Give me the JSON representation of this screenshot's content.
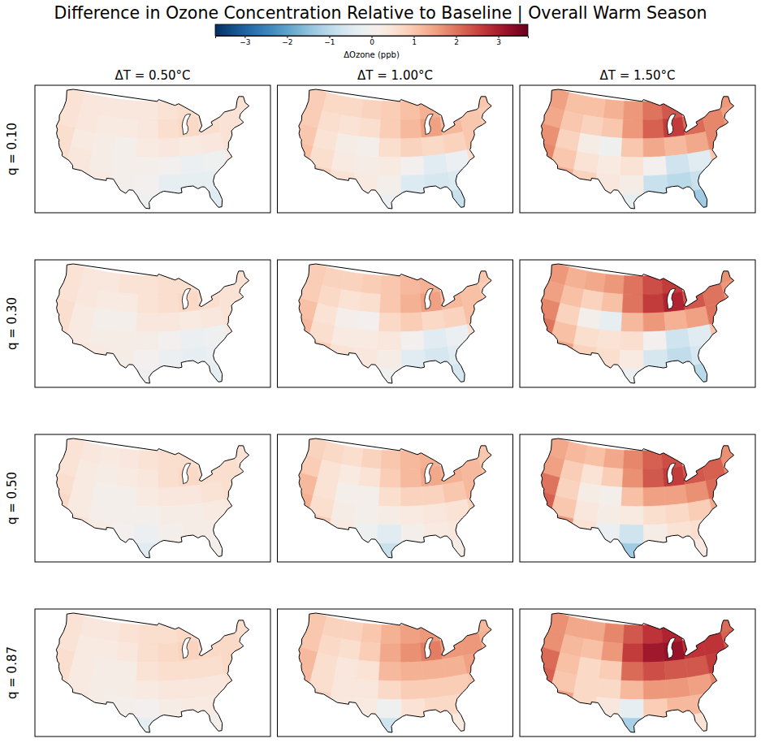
{
  "chart_data": {
    "type": "heatmap",
    "title": "Difference in Ozone Concentration Relative to Baseline | Overall Warm Season",
    "tick_labels": false,
    "colorbar": {
      "label": "ΔOzone (ppb)",
      "range": [
        -3.7,
        3.7
      ],
      "ticks": [
        {
          "value": -3,
          "label": "−3"
        },
        {
          "value": -2,
          "label": "−2"
        },
        {
          "value": -1,
          "label": "−1"
        },
        0,
        1,
        2,
        3
      ]
    },
    "columns": [
      "ΔT = 0.50°C",
      "ΔT = 1.00°C",
      "ΔT = 1.50°C"
    ],
    "rows": [
      "q = 0.10",
      "q = 0.30",
      "q = 0.50",
      "q = 0.87"
    ],
    "lon": [
      -122,
      -116,
      -110,
      -104,
      -98,
      -92,
      -86,
      -80,
      -74,
      -68
    ],
    "lat": [
      47,
      43,
      39,
      35,
      31,
      27
    ],
    "cells": [
      [
        [
          [
            0.5,
            0.4,
            0.4,
            0.4,
            0.4,
            0.5,
            0.6,
            null,
            null,
            0.5
          ],
          [
            0.5,
            0.4,
            0.3,
            0.3,
            0.4,
            0.6,
            0.7,
            0.6,
            0.5,
            0.5
          ],
          [
            0.6,
            0.3,
            0.2,
            0.1,
            0.3,
            0.4,
            0.3,
            0.4,
            0.5,
            null
          ],
          [
            0.6,
            0.4,
            0.2,
            0.1,
            0.1,
            0.0,
            -0.2,
            -0.1,
            0.3,
            null
          ],
          [
            null,
            0.4,
            0.3,
            0.1,
            0.0,
            -0.3,
            -0.3,
            -0.3,
            null,
            null
          ],
          [
            null,
            null,
            null,
            null,
            -0.1,
            null,
            null,
            -0.4,
            null,
            null
          ]
        ],
        [
          [
            0.9,
            0.7,
            0.7,
            0.8,
            0.9,
            1.1,
            1.3,
            null,
            null,
            1.0
          ],
          [
            0.9,
            0.6,
            0.5,
            0.6,
            0.9,
            1.2,
            1.5,
            1.2,
            1.0,
            0.9
          ],
          [
            1.0,
            0.5,
            0.2,
            0.1,
            0.6,
            0.8,
            0.7,
            0.8,
            1.0,
            null
          ],
          [
            1.1,
            0.6,
            0.3,
            0.2,
            0.3,
            0.0,
            -0.4,
            -0.2,
            0.6,
            null
          ],
          [
            null,
            0.8,
            0.5,
            0.3,
            0.1,
            -0.5,
            -0.6,
            -0.5,
            null,
            null
          ],
          [
            null,
            null,
            null,
            null,
            -0.2,
            null,
            null,
            -0.8,
            null,
            null
          ]
        ],
        [
          [
            1.5,
            1.1,
            1.1,
            1.3,
            1.6,
            2.0,
            2.3,
            null,
            null,
            1.6
          ],
          [
            1.4,
            1.0,
            0.8,
            1.0,
            1.6,
            2.2,
            2.6,
            2.1,
            1.8,
            1.5
          ],
          [
            1.7,
            0.8,
            0.2,
            -0.1,
            1.0,
            1.4,
            1.2,
            1.4,
            1.8,
            null
          ],
          [
            1.8,
            1.0,
            0.5,
            0.3,
            0.5,
            0.0,
            -0.7,
            -0.4,
            1.0,
            null
          ],
          [
            null,
            1.3,
            0.8,
            0.4,
            0.2,
            -0.8,
            -1.0,
            -0.8,
            null,
            null
          ],
          [
            null,
            null,
            null,
            null,
            -0.3,
            null,
            null,
            -1.3,
            null,
            null
          ]
        ]
      ],
      [
        [
          [
            0.5,
            0.4,
            0.4,
            0.5,
            0.5,
            0.6,
            0.6,
            null,
            null,
            0.5
          ],
          [
            0.5,
            0.4,
            0.3,
            0.3,
            0.5,
            0.6,
            0.7,
            0.6,
            0.5,
            0.5
          ],
          [
            0.6,
            0.3,
            0.1,
            0.1,
            0.4,
            0.4,
            0.3,
            0.4,
            0.5,
            null
          ],
          [
            0.6,
            0.3,
            0.2,
            0.2,
            0.2,
            0.0,
            -0.2,
            -0.1,
            0.3,
            null
          ],
          [
            null,
            0.4,
            0.3,
            0.2,
            0.0,
            -0.2,
            -0.3,
            -0.2,
            null,
            null
          ],
          [
            null,
            null,
            null,
            null,
            -0.1,
            null,
            null,
            -0.3,
            null,
            null
          ]
        ],
        [
          [
            0.9,
            0.8,
            0.8,
            0.9,
            1.0,
            1.2,
            1.3,
            null,
            null,
            1.0
          ],
          [
            0.9,
            0.7,
            0.5,
            0.6,
            1.0,
            1.3,
            1.5,
            1.2,
            1.1,
            0.9
          ],
          [
            1.1,
            0.5,
            0.1,
            0.0,
            0.7,
            0.9,
            0.7,
            0.8,
            1.1,
            null
          ],
          [
            1.2,
            0.6,
            0.3,
            0.3,
            0.4,
            0.0,
            -0.4,
            -0.2,
            0.6,
            null
          ],
          [
            null,
            0.9,
            0.5,
            0.4,
            0.2,
            -0.4,
            -0.6,
            -0.4,
            null,
            null
          ],
          [
            null,
            null,
            null,
            null,
            -0.1,
            null,
            null,
            -0.6,
            null,
            null
          ]
        ],
        [
          [
            1.6,
            1.3,
            1.4,
            1.6,
            2.0,
            2.4,
            2.6,
            null,
            null,
            1.7
          ],
          [
            1.5,
            1.1,
            0.8,
            1.1,
            2.0,
            2.6,
            2.9,
            2.3,
            2.0,
            1.6
          ],
          [
            1.8,
            0.8,
            0.1,
            -0.3,
            1.2,
            1.6,
            1.3,
            1.5,
            2.0,
            null
          ],
          [
            2.0,
            1.1,
            0.6,
            0.5,
            0.6,
            0.0,
            -0.7,
            -0.4,
            1.1,
            null
          ],
          [
            null,
            1.5,
            0.8,
            0.6,
            0.3,
            -0.6,
            -0.9,
            -0.6,
            null,
            null
          ],
          [
            null,
            null,
            null,
            null,
            -0.2,
            null,
            null,
            -1.0,
            null,
            null
          ]
        ]
      ],
      [
        [
          [
            0.5,
            0.4,
            0.3,
            0.4,
            0.5,
            0.6,
            0.6,
            null,
            null,
            0.5
          ],
          [
            0.5,
            0.3,
            0.2,
            0.3,
            0.4,
            0.6,
            0.7,
            0.6,
            0.6,
            0.5
          ],
          [
            0.6,
            0.3,
            0.1,
            0.1,
            0.3,
            0.4,
            0.4,
            0.5,
            0.6,
            null
          ],
          [
            0.7,
            0.3,
            0.1,
            0.1,
            0.1,
            0.2,
            0.2,
            0.3,
            0.4,
            null
          ],
          [
            null,
            0.5,
            0.2,
            0.0,
            -0.2,
            0.1,
            0.2,
            0.2,
            null,
            null
          ],
          [
            null,
            null,
            null,
            null,
            -0.4,
            null,
            null,
            0.1,
            null,
            null
          ]
        ],
        [
          [
            0.8,
            0.7,
            0.6,
            0.8,
            1.0,
            1.2,
            1.3,
            null,
            null,
            1.0
          ],
          [
            0.9,
            0.5,
            0.3,
            0.5,
            0.9,
            1.2,
            1.4,
            1.3,
            1.2,
            1.0
          ],
          [
            1.2,
            0.5,
            0.1,
            0.1,
            0.6,
            0.8,
            0.8,
            1.0,
            1.2,
            null
          ],
          [
            1.3,
            0.6,
            0.2,
            0.1,
            0.2,
            0.3,
            0.4,
            0.5,
            0.8,
            null
          ],
          [
            null,
            0.9,
            0.3,
            -0.1,
            -0.4,
            0.1,
            0.3,
            0.4,
            null,
            null
          ],
          [
            null,
            null,
            null,
            null,
            -0.8,
            null,
            null,
            0.2,
            null,
            null
          ]
        ],
        [
          [
            1.4,
            1.2,
            1.1,
            1.4,
            1.8,
            2.2,
            2.4,
            null,
            null,
            1.7
          ],
          [
            1.5,
            0.9,
            0.5,
            0.9,
            1.7,
            2.3,
            2.6,
            2.3,
            2.2,
            1.7
          ],
          [
            2.0,
            0.8,
            0.2,
            0.1,
            1.1,
            1.5,
            1.5,
            1.7,
            2.1,
            null
          ],
          [
            2.2,
            1.0,
            0.4,
            0.2,
            0.3,
            0.6,
            0.7,
            0.9,
            1.4,
            null
          ],
          [
            null,
            1.6,
            0.5,
            -0.2,
            -0.7,
            0.2,
            0.5,
            0.6,
            null,
            null
          ],
          [
            null,
            null,
            null,
            null,
            -1.3,
            null,
            null,
            0.3,
            null,
            null
          ]
        ]
      ],
      [
        [
          [
            0.5,
            0.4,
            0.4,
            0.5,
            0.6,
            0.6,
            0.7,
            null,
            null,
            0.6
          ],
          [
            0.5,
            0.3,
            0.3,
            0.4,
            0.6,
            0.7,
            0.8,
            0.7,
            0.7,
            0.6
          ],
          [
            0.6,
            0.3,
            0.2,
            0.2,
            0.5,
            0.6,
            0.6,
            0.6,
            0.7,
            null
          ],
          [
            0.6,
            0.3,
            0.2,
            0.2,
            0.3,
            0.4,
            0.4,
            0.4,
            0.5,
            null
          ],
          [
            null,
            0.4,
            0.2,
            0.1,
            0.0,
            0.2,
            0.3,
            0.3,
            null,
            null
          ],
          [
            null,
            null,
            null,
            null,
            -0.3,
            null,
            null,
            0.1,
            null,
            null
          ]
        ],
        [
          [
            1.0,
            0.8,
            0.8,
            1.0,
            1.3,
            1.5,
            1.6,
            null,
            null,
            1.2
          ],
          [
            1.0,
            0.7,
            0.6,
            0.9,
            1.4,
            1.7,
            1.9,
            1.6,
            1.6,
            1.3
          ],
          [
            1.2,
            0.6,
            0.4,
            0.5,
            1.2,
            1.3,
            1.3,
            1.3,
            1.5,
            null
          ],
          [
            1.2,
            0.6,
            0.4,
            0.4,
            0.7,
            0.9,
            0.9,
            0.9,
            1.0,
            null
          ],
          [
            null,
            0.8,
            0.4,
            0.3,
            -0.1,
            0.5,
            0.7,
            0.7,
            null,
            null
          ],
          [
            null,
            null,
            null,
            null,
            -0.7,
            null,
            null,
            0.3,
            null,
            null
          ]
        ],
        [
          [
            1.7,
            1.4,
            1.4,
            1.8,
            2.3,
            2.7,
            2.9,
            null,
            null,
            2.1
          ],
          [
            1.7,
            1.2,
            1.1,
            1.6,
            2.6,
            3.1,
            3.2,
            2.7,
            2.7,
            2.2
          ],
          [
            2.1,
            1.1,
            0.7,
            0.9,
            2.1,
            2.4,
            2.3,
            2.3,
            2.6,
            null
          ],
          [
            2.2,
            1.0,
            0.7,
            0.7,
            1.2,
            1.6,
            1.6,
            1.5,
            1.8,
            null
          ],
          [
            null,
            1.5,
            0.7,
            0.4,
            -0.3,
            0.9,
            1.2,
            1.2,
            null,
            null
          ],
          [
            null,
            null,
            null,
            null,
            -1.2,
            null,
            null,
            0.5,
            null,
            null
          ]
        ]
      ]
    ]
  }
}
